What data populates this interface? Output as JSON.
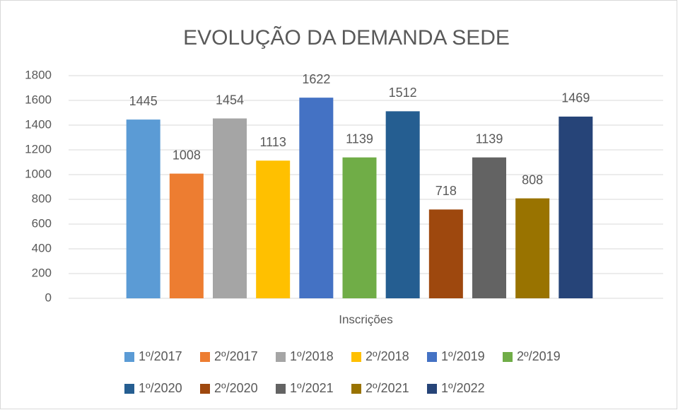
{
  "chart_data": {
    "type": "bar",
    "title": "EVOLUÇÃO DA DEMANDA SEDE",
    "categories": [
      "Inscrições"
    ],
    "series": [
      {
        "name": "1º/2017",
        "color": "#5b9bd5",
        "values": [
          1445
        ]
      },
      {
        "name": "2º/2017",
        "color": "#ed7d31",
        "values": [
          1008
        ]
      },
      {
        "name": "1º/2018",
        "color": "#a5a5a5",
        "values": [
          1454
        ]
      },
      {
        "name": "2º/2018",
        "color": "#ffc000",
        "values": [
          1113
        ]
      },
      {
        "name": "1º/2019",
        "color": "#4472c4",
        "values": [
          1622
        ]
      },
      {
        "name": "2º/2019",
        "color": "#70ad47",
        "values": [
          1139
        ]
      },
      {
        "name": "1º/2020",
        "color": "#255e91",
        "values": [
          1512
        ]
      },
      {
        "name": "2º/2020",
        "color": "#9e480e",
        "values": [
          718
        ]
      },
      {
        "name": "1º/2021",
        "color": "#636363",
        "values": [
          1139
        ]
      },
      {
        "name": "2º/2021",
        "color": "#997300",
        "values": [
          808
        ]
      },
      {
        "name": "1º/2022",
        "color": "#264478",
        "values": [
          1469
        ]
      }
    ],
    "ylim": [
      0,
      1800
    ],
    "yticks": [
      0,
      200,
      400,
      600,
      800,
      1000,
      1200,
      1400,
      1600,
      1800
    ],
    "grid": true,
    "legend": "bottom"
  }
}
